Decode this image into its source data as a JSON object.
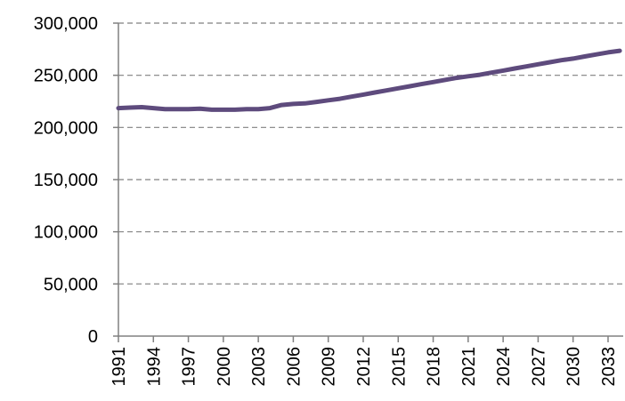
{
  "chart_data": {
    "type": "line",
    "title": "",
    "xlabel": "",
    "ylabel": "",
    "ylim": [
      0,
      300000
    ],
    "yticks": [
      0,
      50000,
      100000,
      150000,
      200000,
      250000,
      300000
    ],
    "ytick_labels": [
      "0",
      "50,000",
      "100,000",
      "150,000",
      "200,000",
      "250,000",
      "300,000"
    ],
    "xtick_labels": [
      "1991",
      "1994",
      "1997",
      "2000",
      "2003",
      "2006",
      "2009",
      "2012",
      "2015",
      "2018",
      "2021",
      "2024",
      "2027",
      "2030",
      "2033"
    ],
    "grid": "horizontal dashed",
    "legend": "none",
    "series": [
      {
        "color": "#5E4B7D",
        "x": [
          1991,
          1992,
          1993,
          1994,
          1995,
          1996,
          1997,
          1998,
          1999,
          2000,
          2001,
          2002,
          2003,
          2004,
          2005,
          2006,
          2007,
          2008,
          2009,
          2010,
          2011,
          2012,
          2013,
          2014,
          2015,
          2016,
          2017,
          2018,
          2019,
          2020,
          2021,
          2022,
          2023,
          2024,
          2025,
          2026,
          2027,
          2028,
          2029,
          2030,
          2031,
          2032,
          2033,
          2034
        ],
        "values": [
          218500,
          219000,
          219500,
          218500,
          217500,
          217500,
          217500,
          218000,
          217000,
          217000,
          217000,
          217500,
          217500,
          218500,
          221500,
          222500,
          223000,
          224500,
          226000,
          227500,
          229500,
          231500,
          233500,
          235500,
          237500,
          239500,
          241500,
          243500,
          245500,
          247500,
          249000,
          250500,
          252500,
          254500,
          256500,
          258500,
          260500,
          262500,
          264500,
          266000,
          268000,
          270000,
          272000,
          273500
        ]
      }
    ]
  }
}
